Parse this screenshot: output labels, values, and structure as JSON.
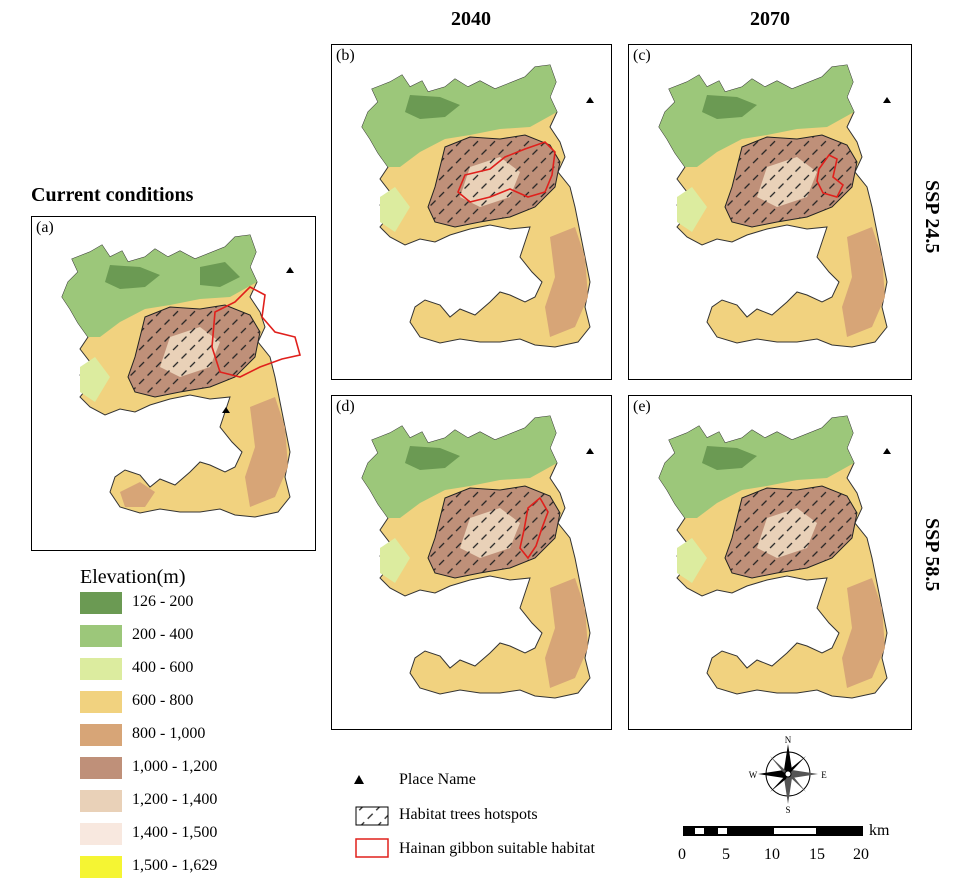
{
  "columns": {
    "left": "2040",
    "right": "2070"
  },
  "current_title": "Current conditions",
  "scenarios": {
    "top": "SSP 24.5",
    "bottom": "SSP 58.5"
  },
  "panels": [
    {
      "id": "a",
      "label": "(a)",
      "period": "Current conditions",
      "scenario": "",
      "suitable_habitat_shown": true
    },
    {
      "id": "b",
      "label": "(b)",
      "period": "2040",
      "scenario": "SSP 24.5",
      "suitable_habitat_shown": true
    },
    {
      "id": "c",
      "label": "(c)",
      "period": "2070",
      "scenario": "SSP 24.5",
      "suitable_habitat_shown": true
    },
    {
      "id": "d",
      "label": "(d)",
      "period": "2040",
      "scenario": "SSP 58.5",
      "suitable_habitat_shown": true
    },
    {
      "id": "e",
      "label": "(e)",
      "period": "2070",
      "scenario": "SSP 58.5",
      "suitable_habitat_shown": false
    }
  ],
  "legend": {
    "title": "Elevation(m)",
    "classes": [
      {
        "range": "126 - 200",
        "color": "#6b9a53"
      },
      {
        "range": "200 - 400",
        "color": "#9cc77a"
      },
      {
        "range": "400 - 600",
        "color": "#dcec9f"
      },
      {
        "range": "600 - 800",
        "color": "#f1d27f"
      },
      {
        "range": "800 - 1,000",
        "color": "#d7a577"
      },
      {
        "range": "1,000 - 1,200",
        "color": "#bf9079"
      },
      {
        "range": "1,200 - 1,400",
        "color": "#e9d1b8"
      },
      {
        "range": "1,400 - 1,500",
        "color": "#f8e8df"
      },
      {
        "range": "1,500 - 1,629",
        "color": "#f5f533"
      }
    ]
  },
  "symbols": {
    "place_name": "Place Name",
    "hotspots": "Habitat trees hotspots",
    "suitable": "Hainan gibbon suitable habitat",
    "suitable_color": "#e0201c"
  },
  "north_arrow": {
    "n": "N",
    "s": "S",
    "e": "E",
    "w": "W"
  },
  "scale_bar": {
    "unit": "km",
    "ticks": [
      "0",
      "5",
      "10",
      "15",
      "20"
    ]
  }
}
